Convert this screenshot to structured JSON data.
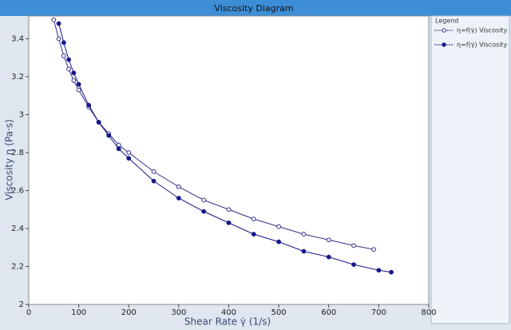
{
  "chart_data": {
    "type": "line",
    "title": "Viscosity Diagram",
    "x_label": "Shear Rate γ̇ (1/s)",
    "y_label": "Viscosity η (Pa·s)",
    "legend_title": "Legend",
    "legend": "right",
    "xlim": [
      0,
      800
    ],
    "xticks": [
      0,
      100,
      200,
      300,
      400,
      500,
      600,
      700,
      800
    ],
    "ylim": [
      2,
      3.52
    ],
    "yticks": [
      2,
      2.2,
      2.4,
      2.6,
      2.8,
      3,
      3.2,
      3.4
    ],
    "series": [
      {
        "name": "η=f(γ̇) Viscosity",
        "color": "#2e2e8a",
        "marker": "open",
        "x": [
          50,
          60,
          70,
          80,
          90,
          100,
          120,
          140,
          160,
          180,
          200,
          250,
          300,
          350,
          400,
          450,
          500,
          550,
          600,
          650,
          690
        ],
        "values": [
          3.5,
          3.4,
          3.31,
          3.24,
          3.18,
          3.13,
          3.04,
          2.96,
          2.9,
          2.84,
          2.8,
          2.7,
          2.62,
          2.55,
          2.5,
          2.45,
          2.41,
          2.37,
          2.34,
          2.31,
          2.29
        ]
      },
      {
        "name": "η=f(γ̇) Viscosity",
        "color": "#16168a",
        "marker": "filled",
        "x": [
          60,
          70,
          80,
          90,
          100,
          120,
          140,
          160,
          180,
          200,
          250,
          300,
          350,
          400,
          450,
          500,
          550,
          600,
          650,
          700,
          725
        ],
        "values": [
          3.48,
          3.38,
          3.29,
          3.22,
          3.16,
          3.05,
          2.96,
          2.89,
          2.82,
          2.77,
          2.65,
          2.56,
          2.49,
          2.43,
          2.37,
          2.33,
          2.28,
          2.25,
          2.21,
          2.18,
          2.17
        ]
      }
    ]
  }
}
